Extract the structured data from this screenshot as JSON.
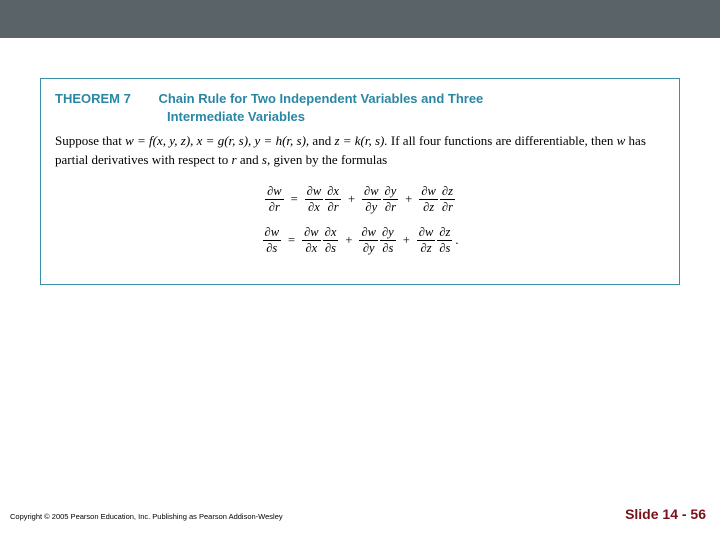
{
  "colors": {
    "topbar": "#5a6368",
    "box_border": "#3b8ea8",
    "header_color": "#2a87a4",
    "slide_color": "#7a1018"
  },
  "theorem": {
    "label": "THEOREM 7",
    "title": "Chain Rule for Two Independent Variables and Three",
    "subtitle": "Intermediate Variables",
    "body_prefix": "Suppose that ",
    "eq1": "w = f(x, y, z), x = g(r, s), y = h(r, s),",
    "body_mid": " and ",
    "eq2": "z = k(r, s).",
    "body_suffix": " If all four functions are differentiable, then ",
    "body_w": "w",
    "body_end": " has partial derivatives with respect to ",
    "body_r": "r",
    "body_and": " and ",
    "body_s": "s",
    "body_final": ", given by the formulas"
  },
  "formulas": {
    "d": "∂",
    "w": "w",
    "x": "x",
    "y": "y",
    "z": "z",
    "r": "r",
    "s": "s"
  },
  "footer": {
    "copyright": "Copyright © 2005 Pearson Education, Inc.  Publishing as Pearson Addison-Wesley",
    "slide": "Slide 14 - 56"
  }
}
